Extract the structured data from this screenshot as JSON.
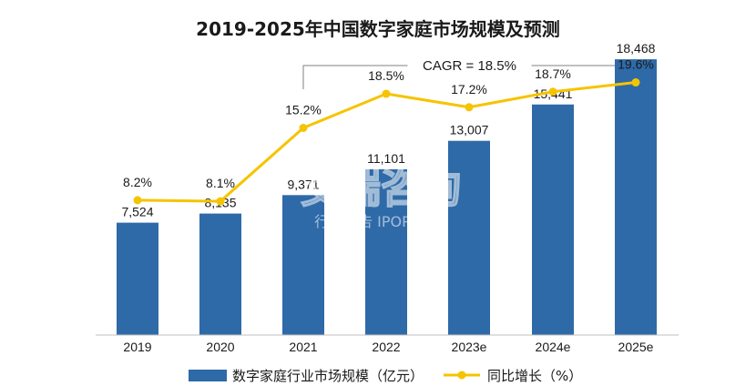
{
  "chart_data": {
    "type": "bar",
    "title": "2019-2025年中国数字家庭市场规模及预测",
    "categories": [
      "2019",
      "2020",
      "2021",
      "2022",
      "2023e",
      "2024e",
      "2025e"
    ],
    "series": [
      {
        "name": "数字家庭行业市场规模（亿元）",
        "type": "bar",
        "values": [
          7524,
          8135,
          9371,
          11101,
          13007,
          15441,
          18468
        ],
        "labels": [
          "7,524",
          "8,135",
          "9,371",
          "11,101",
          "13,007",
          "15,441",
          "18,468"
        ],
        "color": "#2e6aa8"
      },
      {
        "name": "同比增长（%）",
        "type": "line",
        "values": [
          8.2,
          8.1,
          15.2,
          18.5,
          17.2,
          18.7,
          19.6
        ],
        "labels": [
          "8.2%",
          "8.1%",
          "15.2%",
          "18.5%",
          "17.2%",
          "18.7%",
          "19.6%"
        ],
        "color": "#f5c400"
      }
    ],
    "annotation": {
      "text": "CAGR = 18.5%",
      "from": "2021",
      "to": "2025e"
    },
    "legend_position": "bottom",
    "grid": false
  },
  "watermark": {
    "main": "艾瑞咨询",
    "sub": "行业报告 IPOPO.CN"
  }
}
